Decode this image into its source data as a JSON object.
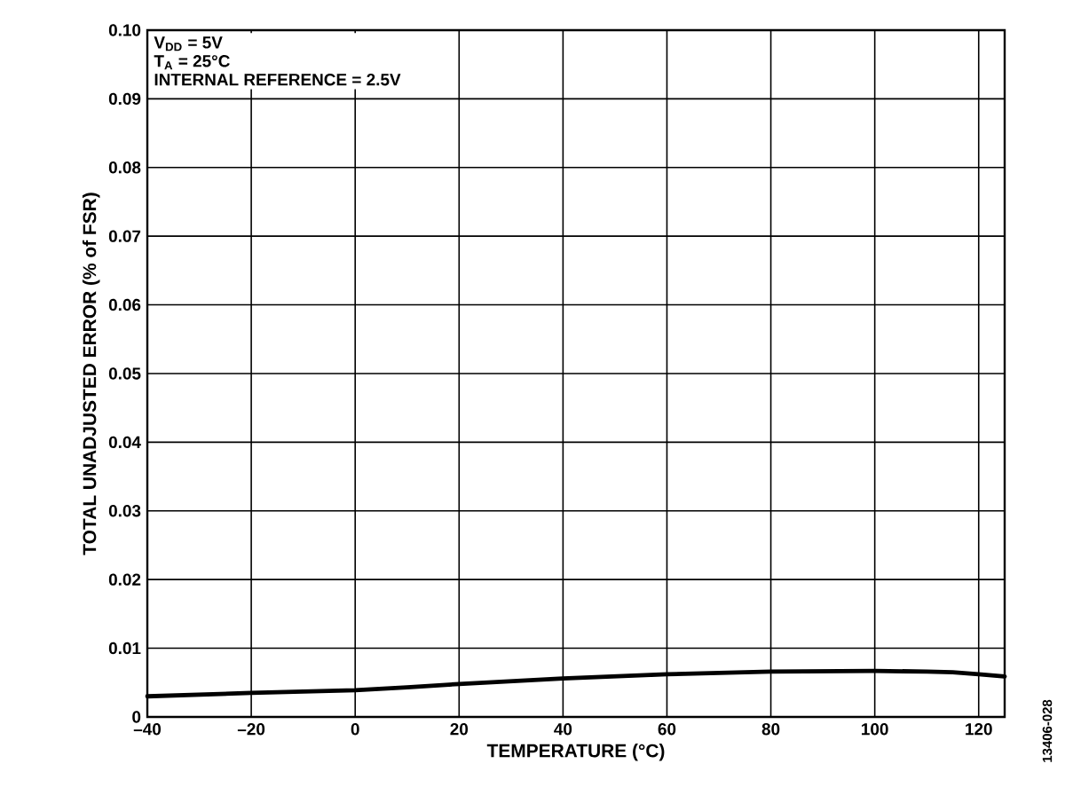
{
  "chart_data": {
    "type": "line",
    "xlabel": "TEMPERATURE (°C)",
    "ylabel": "TOTAL UNADJUSTED ERROR (% of FSR)",
    "annotations": [
      "V$_{DD}$ = 5V",
      "T$_{A}$ = 25°C",
      "INTERNAL REFERENCE = 2.5V",
      "13406-028"
    ],
    "x": [
      -40,
      -20,
      0,
      10,
      20,
      40,
      60,
      80,
      100,
      110,
      115,
      120,
      125
    ],
    "series": [
      {
        "color": "#000000",
        "values": [
          0.003,
          0.0035,
          0.0039,
          0.0043,
          0.0048,
          0.0056,
          0.0062,
          0.0066,
          0.0067,
          0.0066,
          0.0065,
          0.0062,
          0.0059
        ]
      }
    ],
    "xlim": [
      -40,
      125
    ],
    "ylim": [
      0,
      0.1
    ],
    "xticks": [
      {
        "value": -40,
        "label": "–40"
      },
      {
        "value": -20,
        "label": "–20"
      },
      0,
      20,
      40,
      60,
      80,
      100,
      120
    ],
    "yticks": [
      0,
      0.01,
      0.02,
      0.03,
      0.04,
      0.05,
      0.06,
      0.07,
      0.08,
      0.09,
      {
        "value": 0.1,
        "label": "0.10"
      }
    ],
    "grid": true,
    "line_style": "solid"
  }
}
